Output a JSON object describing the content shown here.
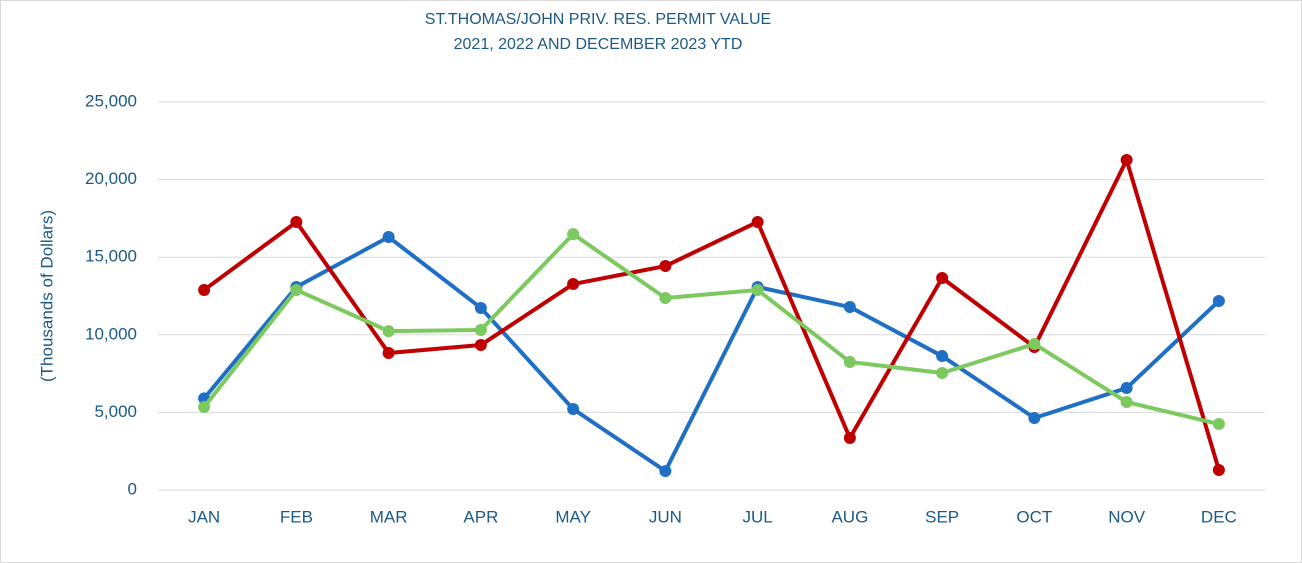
{
  "chart_data": {
    "type": "line",
    "title": "ST.THOMAS/JOHN PRIV. RES. PERMIT VALUE",
    "subtitle": "2021, 2022 AND DECEMBER 2023 YTD",
    "y_label": "(Thousands of Dollars)",
    "categories": [
      "JAN",
      "FEB",
      "MAR",
      "APR",
      "MAY",
      "JUN",
      "JUL",
      "AUG",
      "SEP",
      "OCT",
      "NOV",
      "DEC"
    ],
    "series": [
      {
        "color": "#1f6fc5",
        "values": [
          5900,
          13080,
          16300,
          11730,
          5220,
          1220,
          13080,
          11790,
          8630,
          4640,
          6570,
          12180
        ]
      },
      {
        "color": "#c00000",
        "values": [
          12890,
          17270,
          8830,
          9340,
          13270,
          14430,
          17270,
          3350,
          13660,
          9210,
          21260,
          1290
        ]
      },
      {
        "color": "#7cc95f",
        "values": [
          5350,
          12890,
          10240,
          10310,
          16490,
          12370,
          12890,
          8250,
          7540,
          9410,
          5670,
          4250
        ]
      }
    ],
    "ylim": [
      0,
      25000
    ],
    "yticks": [
      0,
      {
        "value": 5000,
        "label": "5,000"
      },
      {
        "value": 10000,
        "label": "10,000"
      },
      {
        "value": 15000,
        "label": "15,000"
      },
      {
        "value": 20000,
        "label": "20,000"
      },
      {
        "value": 25000,
        "label": "25,000"
      }
    ],
    "grid": true
  }
}
